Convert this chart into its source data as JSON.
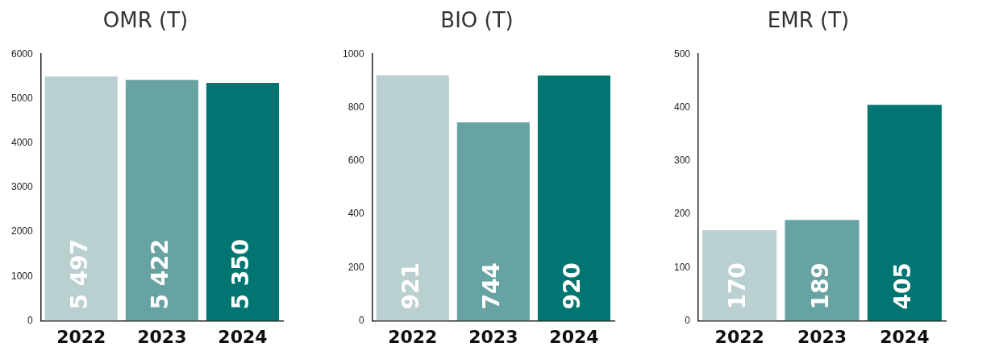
{
  "chart_data": [
    {
      "type": "bar",
      "title": "OMR (T)",
      "categories": [
        "2022",
        "2023",
        "2024"
      ],
      "values": [
        5497,
        5422,
        5350
      ],
      "value_labels": [
        "5 497",
        "5 422",
        "5 350"
      ],
      "colors": [
        "#b9cfd0",
        "#68a3a3",
        "#007571"
      ],
      "ylim": [
        0,
        6000
      ],
      "yticks": [
        0,
        1000,
        2000,
        3000,
        4000,
        5000,
        6000
      ],
      "grid": false,
      "legend": false
    },
    {
      "type": "bar",
      "title": "BIO (T)",
      "categories": [
        "2022",
        "2023",
        "2024"
      ],
      "values": [
        921,
        744,
        920
      ],
      "value_labels": [
        "921",
        "744",
        "920"
      ],
      "colors": [
        "#b9cfd0",
        "#68a3a3",
        "#007571"
      ],
      "ylim": [
        0,
        1000
      ],
      "yticks": [
        0,
        200,
        400,
        600,
        800,
        1000
      ],
      "grid": false,
      "legend": false
    },
    {
      "type": "bar",
      "title": "EMR (T)",
      "categories": [
        "2022",
        "2023",
        "2024"
      ],
      "values": [
        170,
        189,
        405
      ],
      "value_labels": [
        "170",
        "189",
        "405"
      ],
      "colors": [
        "#b9cfd0",
        "#68a3a3",
        "#007571"
      ],
      "ylim": [
        0,
        500
      ],
      "yticks": [
        0,
        100,
        200,
        300,
        400,
        500
      ],
      "grid": false,
      "legend": false
    }
  ]
}
